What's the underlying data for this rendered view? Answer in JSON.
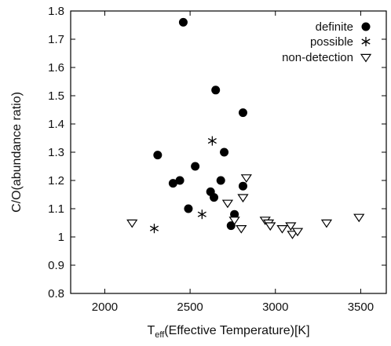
{
  "chart_data": {
    "type": "scatter",
    "xlabel_main": "T",
    "xlabel_sub": "eff",
    "xlabel_rest": "(Effective Temperature)[K]",
    "ylabel": "C/O(abundance ratio)",
    "xlim": [
      1800,
      3650
    ],
    "ylim": [
      0.8,
      1.8
    ],
    "xticks": [
      "2000",
      "2500",
      "3000",
      "3500"
    ],
    "yticks": [
      "0.8",
      "0.9",
      "1",
      "1.1",
      "1.2",
      "1.3",
      "1.4",
      "1.5",
      "1.6",
      "1.7",
      "1.8"
    ],
    "legend_position": "top-right",
    "series": [
      {
        "name": "definite",
        "marker": "filled-circle",
        "points": [
          [
            2460,
            1.76
          ],
          [
            2650,
            1.52
          ],
          [
            2810,
            1.44
          ],
          [
            2310,
            1.29
          ],
          [
            2700,
            1.3
          ],
          [
            2530,
            1.25
          ],
          [
            2400,
            1.19
          ],
          [
            2440,
            1.2
          ],
          [
            2680,
            1.2
          ],
          [
            2620,
            1.16
          ],
          [
            2640,
            1.14
          ],
          [
            2810,
            1.18
          ],
          [
            2490,
            1.1
          ],
          [
            2760,
            1.08
          ],
          [
            2740,
            1.04
          ]
        ]
      },
      {
        "name": "possible",
        "marker": "asterisk",
        "points": [
          [
            2630,
            1.34
          ],
          [
            2570,
            1.08
          ],
          [
            2290,
            1.03
          ]
        ]
      },
      {
        "name": "non-detection",
        "marker": "open-triangle-down",
        "points": [
          [
            2830,
            1.21
          ],
          [
            2810,
            1.14
          ],
          [
            2720,
            1.12
          ],
          [
            2760,
            1.06
          ],
          [
            2800,
            1.03
          ],
          [
            2160,
            1.05
          ],
          [
            2940,
            1.06
          ],
          [
            2960,
            1.05
          ],
          [
            2970,
            1.04
          ],
          [
            3040,
            1.03
          ],
          [
            3090,
            1.04
          ],
          [
            3100,
            1.01
          ],
          [
            3130,
            1.02
          ],
          [
            3300,
            1.05
          ],
          [
            3490,
            1.07
          ]
        ]
      }
    ]
  }
}
